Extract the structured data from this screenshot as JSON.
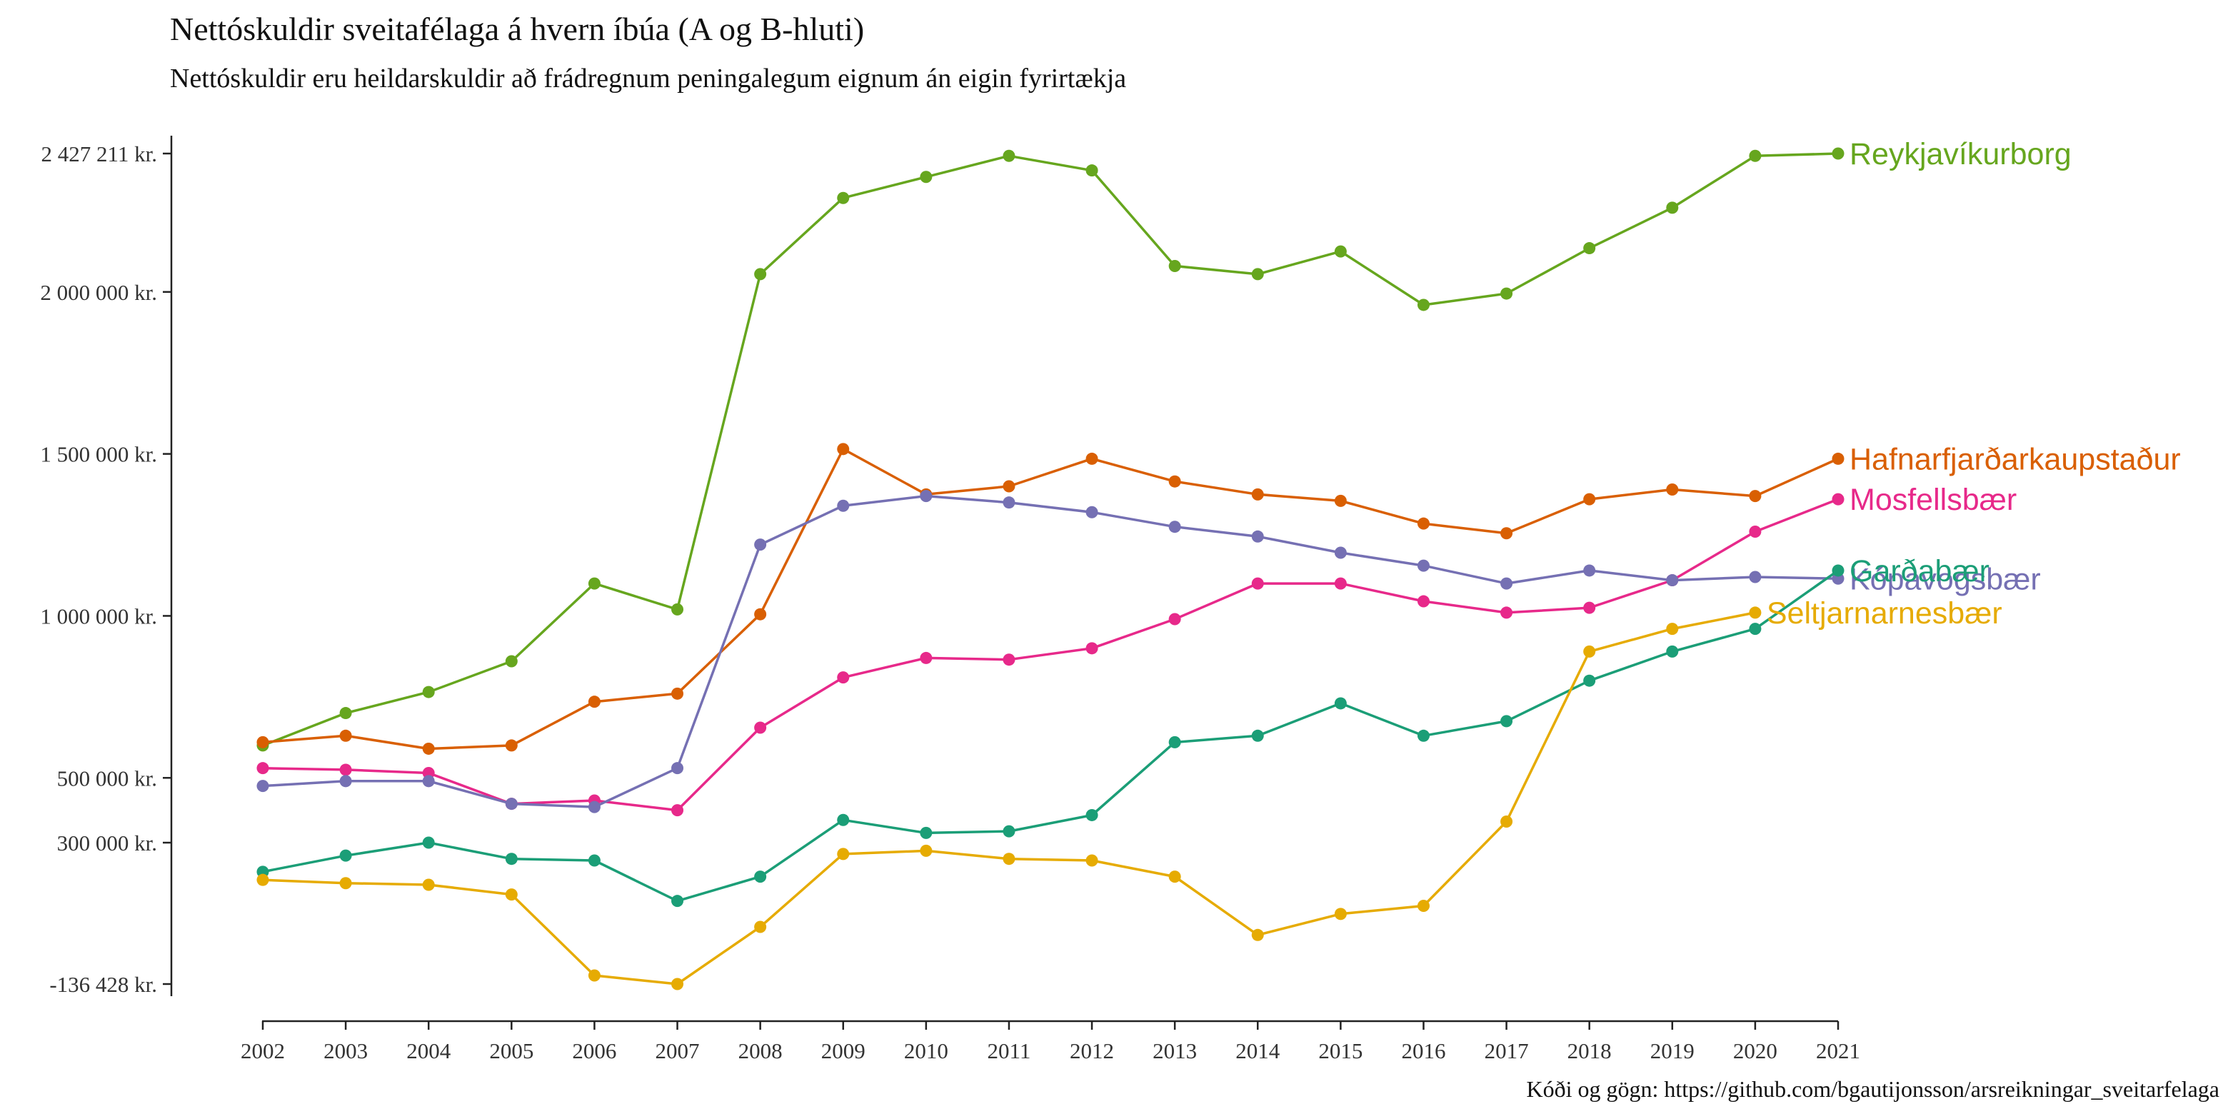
{
  "chart_data": {
    "type": "line",
    "title": "Nettóskuldir sveitafélaga á hvern íbúa (A og B-hluti)",
    "subtitle": "Nettóskuldir eru heildarskuldir að frádregnum peningalegum eignum án eigin fyrirtækja",
    "caption": "Kóði og gögn: https://github.com/bgautijonsson/arsreikningar_sveitarfelaga",
    "xlabel": "",
    "ylabel": "",
    "x": [
      2002,
      2003,
      2004,
      2005,
      2006,
      2007,
      2008,
      2009,
      2010,
      2011,
      2012,
      2013,
      2014,
      2015,
      2016,
      2017,
      2018,
      2019,
      2020,
      2021
    ],
    "y_ticks": [
      {
        "value": 2427211,
        "label": "2 427 211 kr."
      },
      {
        "value": 2000000,
        "label": "2 000 000 kr."
      },
      {
        "value": 1500000,
        "label": "1 500 000 kr."
      },
      {
        "value": 1000000,
        "label": "1 000 000 kr."
      },
      {
        "value": 500000,
        "label": "500 000 kr."
      },
      {
        "value": 300000,
        "label": "300 000 kr."
      },
      {
        "value": -136428,
        "label": "-136 428 kr."
      }
    ],
    "ylim": [
      -136428,
      2427211
    ],
    "grid": false,
    "legend": "direct labels at line ends",
    "series": [
      {
        "name": "Reykjavíkurborg",
        "color": "#66A61E",
        "values": [
          600000,
          700000,
          765000,
          860000,
          1100000,
          1020000,
          2055000,
          2290000,
          2355000,
          2420000,
          2375000,
          2080000,
          2055000,
          2125000,
          1960000,
          1995000,
          2135000,
          2260000,
          2420000,
          2427211
        ]
      },
      {
        "name": "Hafnarfjarðarkaupstaður",
        "color": "#D95F02",
        "values": [
          610000,
          630000,
          590000,
          600000,
          735000,
          760000,
          1005000,
          1515000,
          1375000,
          1400000,
          1485000,
          1415000,
          1375000,
          1355000,
          1285000,
          1255000,
          1360000,
          1390000,
          1370000,
          1485000
        ]
      },
      {
        "name": "Mosfellsbær",
        "color": "#E7298A",
        "values": [
          530000,
          525000,
          515000,
          420000,
          430000,
          400000,
          655000,
          810000,
          870000,
          865000,
          900000,
          990000,
          1100000,
          1100000,
          1045000,
          1010000,
          1025000,
          1110000,
          1260000,
          1360000
        ]
      },
      {
        "name": "Kópavogsbær",
        "color": "#7570B3",
        "values": [
          475000,
          490000,
          490000,
          420000,
          410000,
          530000,
          1220000,
          1340000,
          1370000,
          1350000,
          1320000,
          1275000,
          1245000,
          1195000,
          1155000,
          1100000,
          1140000,
          1110000,
          1120000,
          1115000
        ]
      },
      {
        "name": "Garðabær",
        "color": "#1B9E77",
        "values": [
          210000,
          260000,
          300000,
          250000,
          245000,
          120000,
          195000,
          370000,
          330000,
          335000,
          385000,
          610000,
          630000,
          730000,
          630000,
          675000,
          800000,
          890000,
          960000,
          1140000
        ]
      },
      {
        "name": "Seltjarnarnesbær",
        "color": "#E6AB02",
        "values": [
          185000,
          175000,
          170000,
          140000,
          -110000,
          -136428,
          40000,
          265000,
          275000,
          250000,
          245000,
          195000,
          15000,
          80000,
          105000,
          365000,
          890000,
          960000,
          1010000,
          null
        ]
      }
    ]
  }
}
